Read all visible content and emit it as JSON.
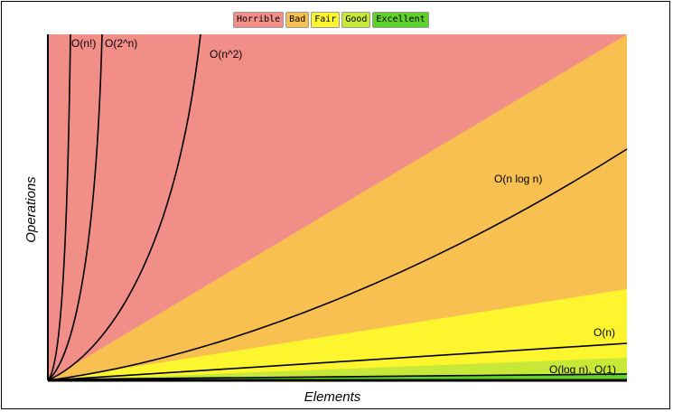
{
  "chart_data": {
    "type": "area",
    "xlabel": "Elements",
    "ylabel": "Operations",
    "legend_position": "top-center",
    "regions": [
      {
        "name": "Horrible",
        "color": "#f28e88"
      },
      {
        "name": "Bad",
        "color": "#f8c050"
      },
      {
        "name": "Fair",
        "color": "#fdf52e"
      },
      {
        "name": "Good",
        "color": "#c8e839"
      },
      {
        "name": "Excellent",
        "color": "#5fd12c"
      }
    ],
    "curves": [
      {
        "label": "O(n!)"
      },
      {
        "label": "O(2^n)"
      },
      {
        "label": "O(n^2)"
      },
      {
        "label": "O(n log n)"
      },
      {
        "label": "O(n)"
      },
      {
        "label": "O(log n), O(1)"
      }
    ]
  }
}
